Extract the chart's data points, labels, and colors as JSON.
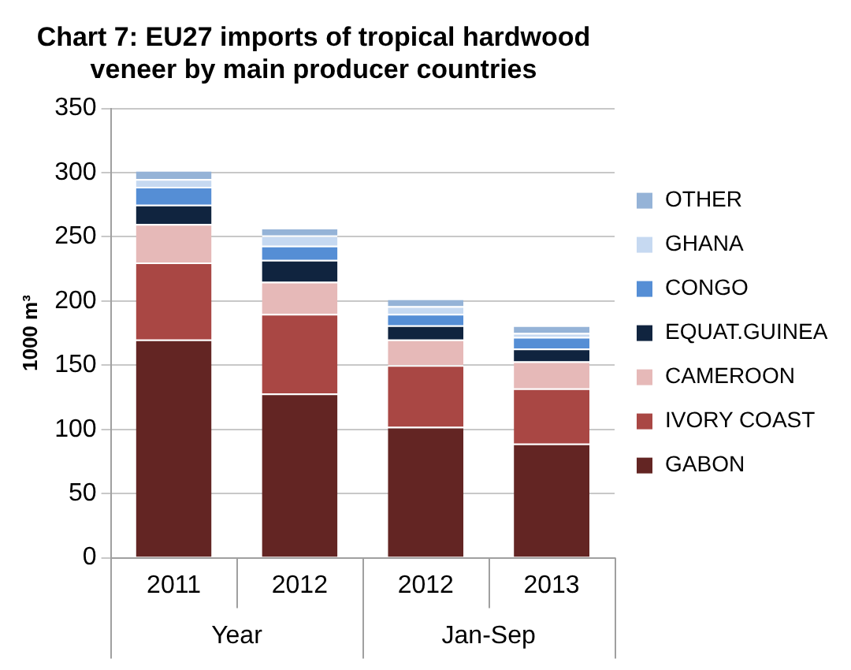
{
  "chart_data": {
    "type": "bar",
    "stacked": true,
    "title": "Chart 7: EU27 imports of tropical hardwood veneer by main producer countries",
    "ylabel": "1000 m³",
    "categories": [
      "2011",
      "2012",
      "2012",
      "2013"
    ],
    "annotations": [
      "Year",
      "Jan-Sep"
    ],
    "ylim": [
      0,
      350
    ],
    "yticks": [
      0,
      50,
      100,
      150,
      200,
      250,
      300,
      350
    ],
    "grid": "y",
    "legend": "right",
    "series": [
      {
        "name": "GABON",
        "color": "#632523",
        "values": [
          170,
          128,
          102,
          89
        ]
      },
      {
        "name": "IVORY COAST",
        "color": "#a94744",
        "values": [
          60,
          62,
          48,
          43
        ]
      },
      {
        "name": "CAMEROON",
        "color": "#e6b9b8",
        "values": [
          30,
          25,
          20,
          21
        ]
      },
      {
        "name": "EQUAT.GUINEA",
        "color": "#10243f",
        "values": [
          15,
          17,
          11,
          10
        ]
      },
      {
        "name": "CONGO",
        "color": "#558ed5",
        "values": [
          14,
          11,
          9,
          9
        ]
      },
      {
        "name": "GHANA",
        "color": "#c6d9f1",
        "values": [
          6,
          8,
          6,
          3
        ]
      },
      {
        "name": "OTHER",
        "color": "#95b3d7",
        "values": [
          7,
          6,
          6,
          6
        ]
      }
    ]
  }
}
